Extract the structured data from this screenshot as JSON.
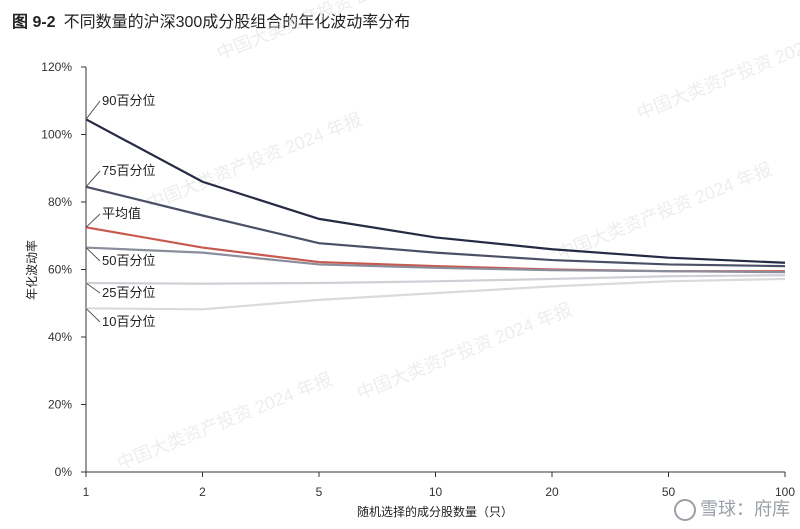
{
  "figure": {
    "number": "图 9-2",
    "title": "不同数量的沪深300成分股组合的年化波动率分布"
  },
  "watermark_text": "中国大类资产投资 2024 年报",
  "brand": {
    "text": "雪球：府库",
    "icon": "snowball-logo-icon"
  },
  "colors": {
    "p90": "#262a44",
    "p75": "#4c5066",
    "mean": "#c8594f",
    "p50": "#8a8d9c",
    "p25": "#cfd0d6",
    "p10": "#d9d9de",
    "axis": "#333333"
  },
  "chart_data": {
    "type": "line",
    "xlabel": "随机选择的成分股数量（只）",
    "ylabel": "年化波动率",
    "x": [
      1,
      2,
      5,
      10,
      20,
      50,
      100
    ],
    "x_tick_labels": [
      "1",
      "2",
      "5",
      "10",
      "20",
      "50",
      "100"
    ],
    "x_scale": "categorical-even",
    "ylim": [
      0,
      120
    ],
    "y_ticks": [
      0,
      20,
      40,
      60,
      80,
      100,
      120
    ],
    "y_tick_labels": [
      "0%",
      "20%",
      "40%",
      "60%",
      "80%",
      "100%",
      "120%"
    ],
    "grid": false,
    "legend": "inline-labels-left",
    "series": [
      {
        "name": "90百分位",
        "color_key": "p90",
        "values": [
          104.5,
          86,
          75,
          69.5,
          66,
          63.5,
          62
        ]
      },
      {
        "name": "75百分位",
        "color_key": "p75",
        "values": [
          84.5,
          76,
          67.8,
          65,
          62.8,
          61.5,
          61
        ]
      },
      {
        "name": "平均值",
        "color_key": "mean",
        "values": [
          72.5,
          66.5,
          62.2,
          61,
          60,
          59.5,
          59.5
        ]
      },
      {
        "name": "50百分位",
        "color_key": "p50",
        "values": [
          66.5,
          65,
          61.5,
          60.5,
          59.8,
          59.5,
          59.2
        ]
      },
      {
        "name": "25百分位",
        "color_key": "p25",
        "values": [
          56,
          55.8,
          56,
          56.5,
          57.2,
          58,
          58.3
        ]
      },
      {
        "name": "10百分位",
        "color_key": "p10",
        "values": [
          48.5,
          48.2,
          51,
          53,
          55,
          56.5,
          57.2
        ]
      }
    ]
  }
}
